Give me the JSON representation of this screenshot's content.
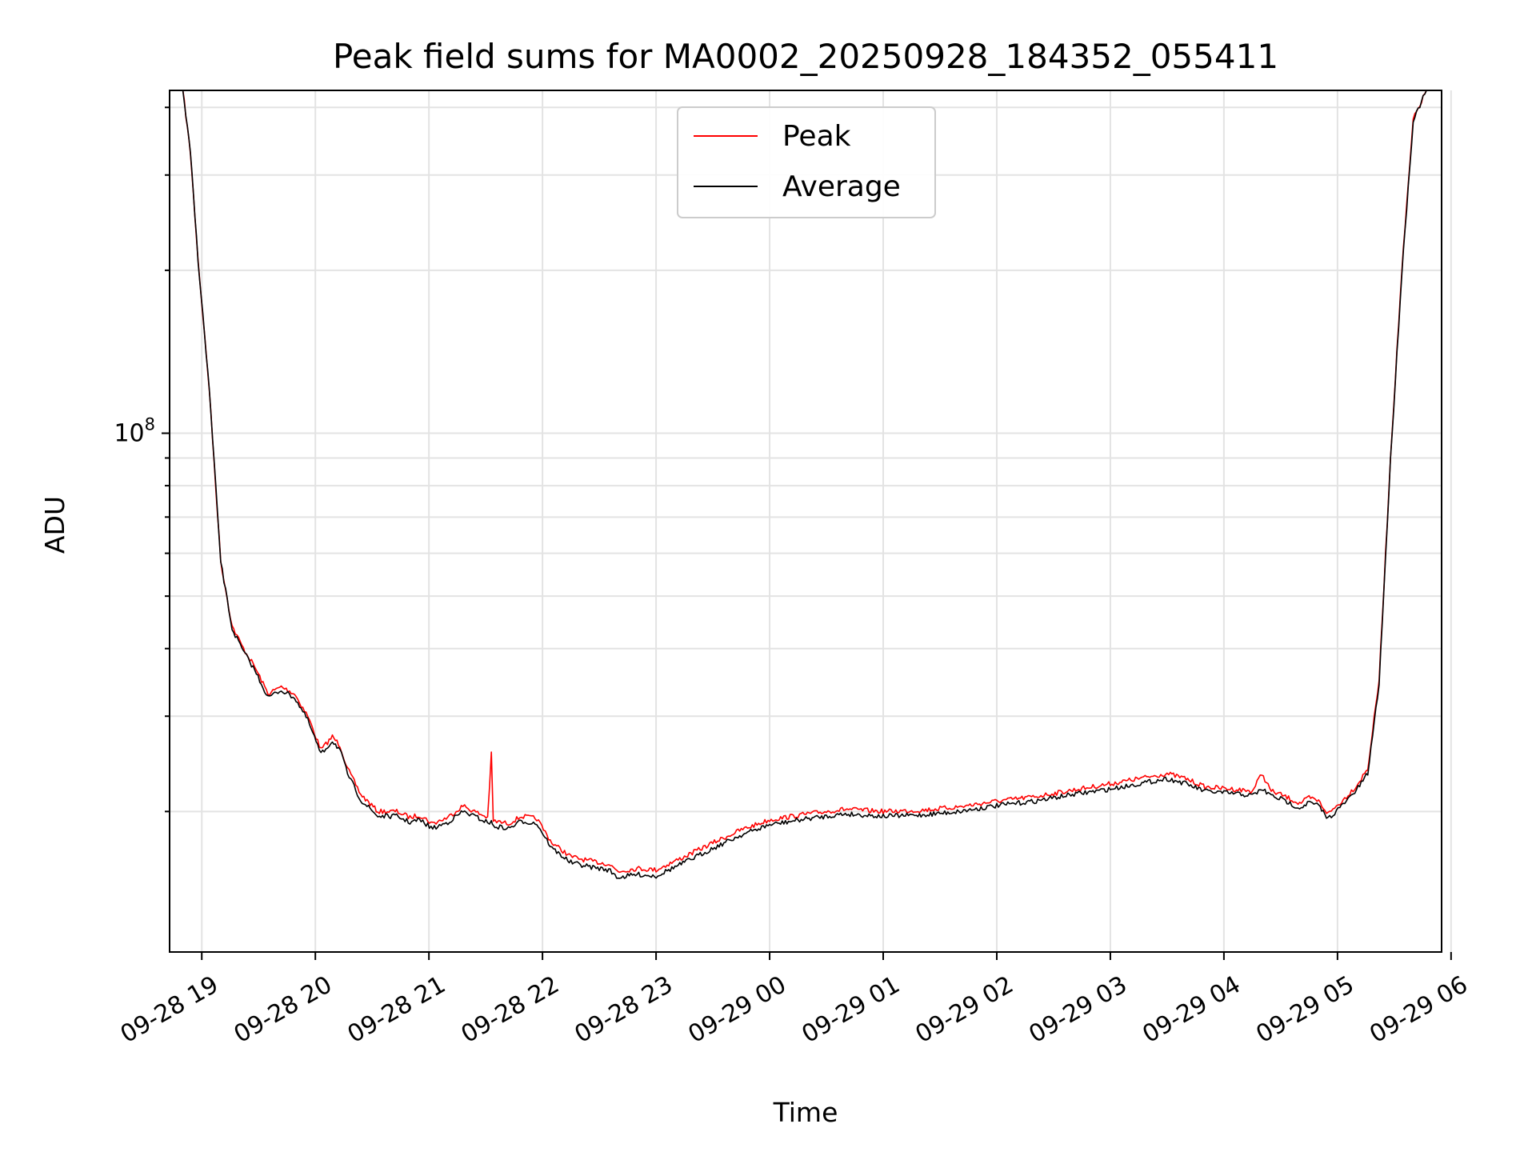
{
  "chart_data": {
    "type": "line",
    "title": "Peak field sums for MA0002_20250928_184352_055411",
    "xlabel": "Time",
    "ylabel": "ADU",
    "x_scale": "time",
    "y_scale": "log",
    "xlim": [
      "2025-09-28 18:43",
      "2025-09-29 05:55"
    ],
    "ylim": [
      11000000.0,
      430000000.0
    ],
    "grid": true,
    "legend_position": "upper center",
    "x_ticks": [
      "09-28 19",
      "09-28 20",
      "09-28 21",
      "09-28 22",
      "09-28 23",
      "09-29 00",
      "09-29 01",
      "09-29 02",
      "09-29 03",
      "09-29 04",
      "09-29 05",
      "09-29 06"
    ],
    "y_ticks": [
      {
        "value": 100000000,
        "label": "10^8"
      }
    ],
    "series": [
      {
        "name": "Peak",
        "color": "#ff0000",
        "x": [
          "2025-09-28 18:43",
          "2025-09-28 18:50",
          "2025-09-28 18:54",
          "2025-09-28 18:58",
          "2025-09-28 19:04",
          "2025-09-28 19:10",
          "2025-09-28 19:16",
          "2025-09-28 19:22",
          "2025-09-28 19:28",
          "2025-09-28 19:35",
          "2025-09-28 19:42",
          "2025-09-28 19:49",
          "2025-09-28 19:56",
          "2025-09-28 20:03",
          "2025-09-28 20:09",
          "2025-09-28 20:13",
          "2025-09-28 20:17",
          "2025-09-28 20:24",
          "2025-09-28 20:33",
          "2025-09-28 20:43",
          "2025-09-28 20:50",
          "2025-09-28 20:55",
          "2025-09-28 21:02",
          "2025-09-28 21:10",
          "2025-09-28 21:18",
          "2025-09-28 21:24",
          "2025-09-28 21:31",
          "2025-09-28 21:33",
          "2025-09-28 21:34",
          "2025-09-28 21:42",
          "2025-09-28 21:49",
          "2025-09-28 21:57",
          "2025-09-28 22:05",
          "2025-09-28 22:15",
          "2025-09-28 22:25",
          "2025-09-28 22:35",
          "2025-09-28 22:40",
          "2025-09-28 22:50",
          "2025-09-28 23:00",
          "2025-09-28 23:15",
          "2025-09-28 23:30",
          "2025-09-28 23:45",
          "2025-09-29 00:00",
          "2025-09-29 00:20",
          "2025-09-29 00:40",
          "2025-09-29 01:00",
          "2025-09-29 01:20",
          "2025-09-29 01:40",
          "2025-09-29 02:00",
          "2025-09-29 02:20",
          "2025-09-29 02:40",
          "2025-09-29 03:00",
          "2025-09-29 03:15",
          "2025-09-29 03:30",
          "2025-09-29 03:40",
          "2025-09-29 03:50",
          "2025-09-29 04:05",
          "2025-09-29 04:15",
          "2025-09-29 04:20",
          "2025-09-29 04:25",
          "2025-09-29 04:30",
          "2025-09-29 04:40",
          "2025-09-29 04:45",
          "2025-09-29 04:50",
          "2025-09-29 04:55",
          "2025-09-29 05:03",
          "2025-09-29 05:10",
          "2025-09-29 05:16",
          "2025-09-29 05:22",
          "2025-09-29 05:28",
          "2025-09-29 05:34",
          "2025-09-29 05:40",
          "2025-09-29 05:47",
          "2025-09-29 05:55"
        ],
        "y": [
          430000000,
          430000000,
          330000000,
          210000000,
          120000000,
          58000000,
          44000000,
          40000000,
          37000000,
          33000000,
          34000000,
          33000000,
          30000000,
          26000000,
          27500000,
          26500000,
          24000000,
          21500000,
          20000000,
          20000000,
          19500000,
          19700000,
          19000000,
          19500000,
          20500000,
          20000000,
          19500000,
          25500000,
          19200000,
          19000000,
          19600000,
          19400000,
          17500000,
          16500000,
          16200000,
          16000000,
          15500000,
          15700000,
          15600000,
          16500000,
          17500000,
          18500000,
          19300000,
          19800000,
          20200000,
          20000000,
          20100000,
          20400000,
          20900000,
          21300000,
          21900000,
          22500000,
          23000000,
          23500000,
          23000000,
          22200000,
          22000000,
          21800000,
          23500000,
          21800000,
          21500000,
          20700000,
          21200000,
          20900000,
          19800000,
          21000000,
          22300000,
          24000000,
          35000000,
          90000000,
          200000000,
          380000000,
          430000000,
          430000000
        ]
      },
      {
        "name": "Average",
        "color": "#000000",
        "x": [
          "2025-09-28 18:43",
          "2025-09-28 18:50",
          "2025-09-28 18:54",
          "2025-09-28 18:58",
          "2025-09-28 19:04",
          "2025-09-28 19:10",
          "2025-09-28 19:16",
          "2025-09-28 19:22",
          "2025-09-28 19:28",
          "2025-09-28 19:35",
          "2025-09-28 19:42",
          "2025-09-28 19:49",
          "2025-09-28 19:56",
          "2025-09-28 20:03",
          "2025-09-28 20:09",
          "2025-09-28 20:13",
          "2025-09-28 20:17",
          "2025-09-28 20:24",
          "2025-09-28 20:33",
          "2025-09-28 20:43",
          "2025-09-28 20:50",
          "2025-09-28 20:55",
          "2025-09-28 21:02",
          "2025-09-28 21:10",
          "2025-09-28 21:18",
          "2025-09-28 21:24",
          "2025-09-28 21:31",
          "2025-09-28 21:33",
          "2025-09-28 21:34",
          "2025-09-28 21:42",
          "2025-09-28 21:49",
          "2025-09-28 21:57",
          "2025-09-28 22:05",
          "2025-09-28 22:15",
          "2025-09-28 22:25",
          "2025-09-28 22:35",
          "2025-09-28 22:40",
          "2025-09-28 22:50",
          "2025-09-28 23:00",
          "2025-09-28 23:15",
          "2025-09-28 23:30",
          "2025-09-28 23:45",
          "2025-09-29 00:00",
          "2025-09-29 00:20",
          "2025-09-29 00:40",
          "2025-09-29 01:00",
          "2025-09-29 01:20",
          "2025-09-29 01:40",
          "2025-09-29 02:00",
          "2025-09-29 02:20",
          "2025-09-29 02:40",
          "2025-09-29 03:00",
          "2025-09-29 03:15",
          "2025-09-29 03:30",
          "2025-09-29 03:40",
          "2025-09-29 03:50",
          "2025-09-29 04:05",
          "2025-09-29 04:15",
          "2025-09-29 04:20",
          "2025-09-29 04:25",
          "2025-09-29 04:30",
          "2025-09-29 04:40",
          "2025-09-29 04:45",
          "2025-09-29 04:50",
          "2025-09-29 04:55",
          "2025-09-29 05:03",
          "2025-09-29 05:10",
          "2025-09-29 05:16",
          "2025-09-29 05:22",
          "2025-09-29 05:28",
          "2025-09-29 05:34",
          "2025-09-29 05:40",
          "2025-09-29 05:47",
          "2025-09-29 05:55"
        ],
        "y": [
          430000000,
          430000000,
          330000000,
          210000000,
          120000000,
          58000000,
          43500000,
          39500000,
          36500000,
          32500000,
          33500000,
          32500000,
          29500000,
          25500000,
          27000000,
          26000000,
          23500000,
          21000000,
          19600000,
          19600000,
          19100000,
          19300000,
          18600000,
          19100000,
          20000000,
          19600000,
          19100000,
          19100000,
          18800000,
          18600000,
          19200000,
          19000000,
          17100000,
          16100000,
          15800000,
          15600000,
          15100000,
          15300000,
          15200000,
          16100000,
          17100000,
          18100000,
          18900000,
          19400000,
          19800000,
          19600000,
          19700000,
          20000000,
          20500000,
          20900000,
          21500000,
          22000000,
          22500000,
          23000000,
          22500000,
          21800000,
          21600000,
          21400000,
          22000000,
          21400000,
          21100000,
          20300000,
          20800000,
          20500000,
          19400000,
          20600000,
          21900000,
          23500000,
          34500000,
          89000000,
          198000000,
          378000000,
          430000000,
          430000000
        ]
      }
    ]
  }
}
